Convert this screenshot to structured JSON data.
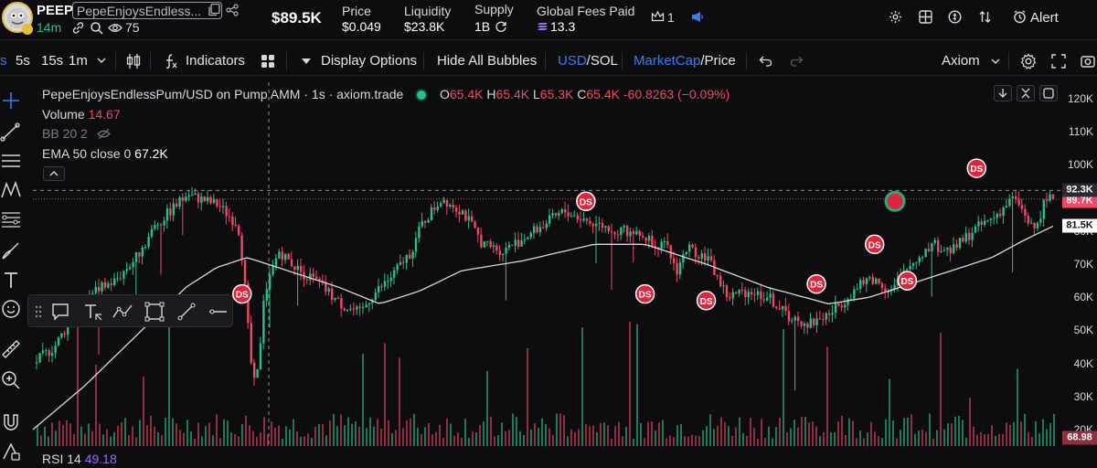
{
  "token": {
    "symbol": "PEEP",
    "name": "PepeEnjoysEndless...",
    "age": "14m",
    "holders": "75",
    "market_cap": "$89.5K"
  },
  "stats": [
    {
      "label": "Price",
      "value": "$0.049"
    },
    {
      "label": "Liquidity",
      "value": "$23.8K"
    },
    {
      "label": "Supply",
      "value": "1B"
    },
    {
      "label": "Global Fees Paid",
      "value": "13.3"
    }
  ],
  "header_right": {
    "crown_count": "1",
    "alert_label": "Alert"
  },
  "toolbar": {
    "intervals": [
      "s",
      "5s",
      "15s",
      "1m"
    ],
    "indicators_label": "Indicators",
    "display_options_label": "Display Options",
    "hide_bubbles_label": "Hide All Bubbles",
    "currency_usd": "USD",
    "currency_sol": "SOL",
    "marketcap_label": "MarketCap",
    "price_label": "Price",
    "source_label": "Axiom",
    "slash": "/"
  },
  "legend": {
    "title": "PepeEnjoysEndlessPum/USD on Pump AMM · 1s · axiom.trade",
    "open_key": "O",
    "open": "65.4K",
    "high_key": "H",
    "high": "65.4K",
    "low_key": "L",
    "low": "65.3K",
    "close_key": "C",
    "close": "65.4K",
    "change": "-60.8263 (−0.09%)",
    "volume_label": "Volume",
    "volume_value": "14.67",
    "bb_label": "BB 20 2",
    "ema_label": "EMA 50 close 0",
    "ema_value": "67.2K"
  },
  "rsi": {
    "label": "RSI 14",
    "value": "49.18"
  },
  "bubble_label": "DS",
  "colors": {
    "up": "#27c08a",
    "down": "#f04866",
    "accent": "#3b7bf6",
    "ema": "#d9d9dd",
    "gold": "#e0c03a"
  },
  "chart_data": {
    "type": "candlestick",
    "y_unit": "market cap (USD)",
    "ylim": [
      15000,
      125000
    ],
    "y_ticks": [
      "120K",
      "110K",
      "100K",
      "90K",
      "80K",
      "70K",
      "60K",
      "50K",
      "40K",
      "30K",
      "20K"
    ],
    "price_labels": {
      "current": "89.7K",
      "crosshair": "92.3K",
      "ema": "81.5K",
      "volume": "68.98"
    },
    "close_path": [
      [
        0,
        40000
      ],
      [
        0.02,
        45000
      ],
      [
        0.04,
        55000
      ],
      [
        0.06,
        62000
      ],
      [
        0.08,
        65000
      ],
      [
        0.1,
        72000
      ],
      [
        0.12,
        82000
      ],
      [
        0.15,
        91000
      ],
      [
        0.18,
        88000
      ],
      [
        0.2,
        82000
      ],
      [
        0.205,
        70000
      ],
      [
        0.21,
        50000
      ],
      [
        0.215,
        33000
      ],
      [
        0.22,
        38000
      ],
      [
        0.225,
        60000
      ],
      [
        0.24,
        74000
      ],
      [
        0.26,
        68000
      ],
      [
        0.28,
        64000
      ],
      [
        0.3,
        58000
      ],
      [
        0.32,
        55000
      ],
      [
        0.33,
        60000
      ],
      [
        0.35,
        66000
      ],
      [
        0.37,
        74000
      ],
      [
        0.38,
        82000
      ],
      [
        0.4,
        90000
      ],
      [
        0.42,
        86000
      ],
      [
        0.44,
        76000
      ],
      [
        0.46,
        74000
      ],
      [
        0.48,
        78000
      ],
      [
        0.5,
        82000
      ],
      [
        0.52,
        86000
      ],
      [
        0.55,
        82000
      ],
      [
        0.58,
        80000
      ],
      [
        0.6,
        78000
      ],
      [
        0.62,
        75000
      ],
      [
        0.63,
        68000
      ],
      [
        0.64,
        75000
      ],
      [
        0.66,
        72000
      ],
      [
        0.68,
        60000
      ],
      [
        0.7,
        62000
      ],
      [
        0.72,
        60000
      ],
      [
        0.74,
        54000
      ],
      [
        0.76,
        52000
      ],
      [
        0.78,
        55000
      ],
      [
        0.8,
        61000
      ],
      [
        0.82,
        66000
      ],
      [
        0.84,
        62000
      ],
      [
        0.86,
        70000
      ],
      [
        0.88,
        76000
      ],
      [
        0.9,
        74000
      ],
      [
        0.92,
        80000
      ],
      [
        0.94,
        84000
      ],
      [
        0.96,
        90000
      ],
      [
        0.97,
        86000
      ],
      [
        0.98,
        80000
      ],
      [
        0.99,
        88000
      ],
      [
        1,
        91000
      ]
    ],
    "ema_path": [
      [
        0,
        20000
      ],
      [
        0.05,
        33000
      ],
      [
        0.1,
        48000
      ],
      [
        0.15,
        63000
      ],
      [
        0.18,
        69000
      ],
      [
        0.21,
        72000
      ],
      [
        0.25,
        68000
      ],
      [
        0.3,
        63000
      ],
      [
        0.34,
        58000
      ],
      [
        0.38,
        62000
      ],
      [
        0.42,
        68000
      ],
      [
        0.48,
        71000
      ],
      [
        0.55,
        76000
      ],
      [
        0.6,
        76000
      ],
      [
        0.66,
        70000
      ],
      [
        0.72,
        63000
      ],
      [
        0.78,
        58000
      ],
      [
        0.82,
        60000
      ],
      [
        0.86,
        64000
      ],
      [
        0.9,
        68000
      ],
      [
        0.94,
        72000
      ],
      [
        0.97,
        77000
      ],
      [
        1,
        81500
      ]
    ],
    "bubbles": [
      {
        "x": 0.205,
        "y": 61000,
        "label": "DS"
      },
      {
        "x": 0.542,
        "y": 89000,
        "label": "DS"
      },
      {
        "x": 0.6,
        "y": 61000,
        "label": "DS"
      },
      {
        "x": 0.66,
        "y": 59000,
        "label": "DS"
      },
      {
        "x": 0.768,
        "y": 64000,
        "label": "DS"
      },
      {
        "x": 0.825,
        "y": 76000,
        "label": "DS"
      },
      {
        "x": 0.857,
        "y": 65000,
        "label": "DS"
      },
      {
        "x": 0.925,
        "y": 99000,
        "label": "DS"
      }
    ],
    "green_marker": {
      "x": 0.845,
      "y": 89000
    }
  }
}
